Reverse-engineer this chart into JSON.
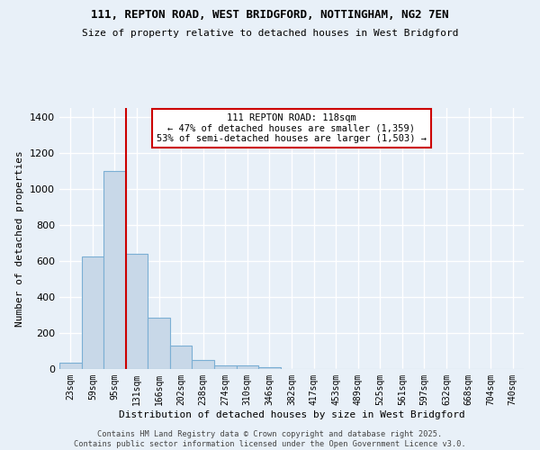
{
  "title1": "111, REPTON ROAD, WEST BRIDGFORD, NOTTINGHAM, NG2 7EN",
  "title2": "Size of property relative to detached houses in West Bridgford",
  "xlabel": "Distribution of detached houses by size in West Bridgford",
  "ylabel": "Number of detached properties",
  "bar_labels": [
    "23sqm",
    "59sqm",
    "95sqm",
    "131sqm",
    "166sqm",
    "202sqm",
    "238sqm",
    "274sqm",
    "310sqm",
    "346sqm",
    "382sqm",
    "417sqm",
    "453sqm",
    "489sqm",
    "525sqm",
    "561sqm",
    "597sqm",
    "632sqm",
    "668sqm",
    "704sqm",
    "740sqm"
  ],
  "bar_values": [
    35,
    625,
    1100,
    640,
    285,
    130,
    50,
    22,
    22,
    8,
    0,
    0,
    0,
    0,
    0,
    0,
    0,
    0,
    0,
    0,
    0
  ],
  "bar_color": "#c8d8e8",
  "bar_edge_color": "#7bafd4",
  "annotation_line1": "111 REPTON ROAD: 118sqm",
  "annotation_line2": "← 47% of detached houses are smaller (1,359)",
  "annotation_line3": "53% of semi-detached houses are larger (1,503) →",
  "annotation_box_color": "#ffffff",
  "annotation_box_edge_color": "#cc0000",
  "vline_x": 2.5,
  "vline_color": "#cc0000",
  "background_color": "#e8f0f8",
  "grid_color": "#ffffff",
  "footer_text": "Contains HM Land Registry data © Crown copyright and database right 2025.\nContains public sector information licensed under the Open Government Licence v3.0.",
  "ylim": [
    0,
    1450
  ],
  "yticks": [
    0,
    200,
    400,
    600,
    800,
    1000,
    1200,
    1400
  ]
}
